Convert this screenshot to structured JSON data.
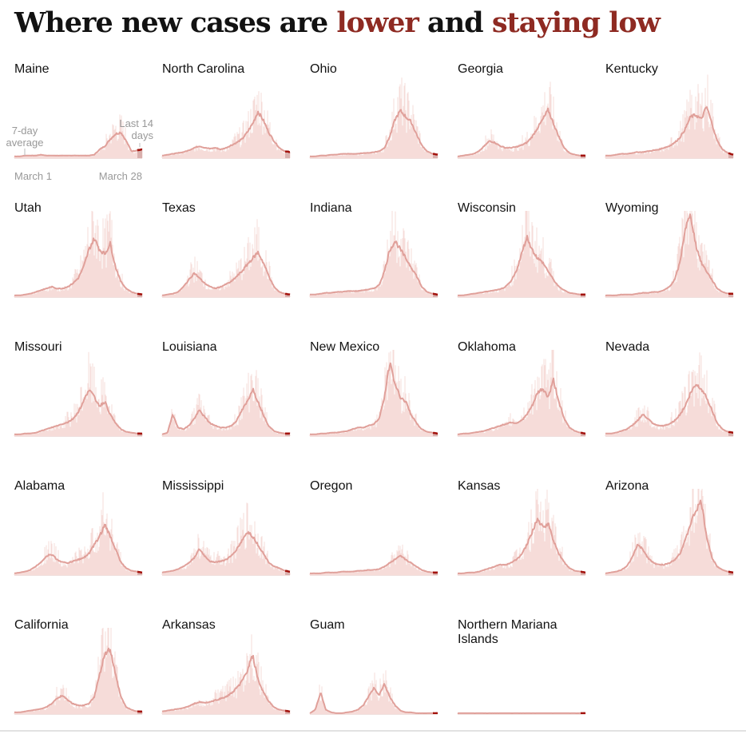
{
  "title": {
    "part1": "Where new cases are ",
    "part2": "lower",
    "part3": " and ",
    "part4": "staying low"
  },
  "colors": {
    "line": "#e0a09a",
    "bars": "#f6dcd9",
    "recent": "#a3120c",
    "recent_band": "#d9b0ad",
    "title_red": "#8e2a22"
  },
  "chart_data": {
    "type": "line",
    "title": "Where new cases are lower and staying low",
    "xlabel": "",
    "ylabel": "",
    "ylim": [
      0,
      100
    ],
    "x_range": [
      "March 1",
      "March 28"
    ],
    "annotations": {
      "avg": "7-day average",
      "recent": "Last 14 days",
      "start": "March 1",
      "end": "March 28"
    },
    "series": [
      {
        "name": "Maine",
        "values": [
          2,
          2,
          3,
          3,
          3,
          4,
          3,
          3,
          3,
          3,
          3,
          3,
          3,
          3,
          3,
          4,
          10,
          14,
          22,
          28,
          30,
          20,
          8,
          9,
          10
        ]
      },
      {
        "name": "North Carolina",
        "values": [
          3,
          4,
          5,
          6,
          7,
          9,
          12,
          14,
          12,
          11,
          12,
          10,
          12,
          15,
          18,
          22,
          30,
          40,
          54,
          44,
          30,
          20,
          12,
          8,
          7
        ]
      },
      {
        "name": "Ohio",
        "values": [
          2,
          2,
          3,
          3,
          4,
          4,
          5,
          5,
          5,
          5,
          6,
          6,
          7,
          8,
          12,
          25,
          45,
          55,
          48,
          42,
          28,
          15,
          8,
          5,
          4
        ]
      },
      {
        "name": "Georgia",
        "values": [
          2,
          3,
          4,
          5,
          8,
          14,
          20,
          18,
          14,
          12,
          12,
          13,
          15,
          18,
          25,
          35,
          45,
          56,
          40,
          25,
          12,
          6,
          4,
          3,
          3
        ]
      },
      {
        "name": "Kentucky",
        "values": [
          3,
          3,
          4,
          5,
          5,
          6,
          7,
          7,
          8,
          9,
          10,
          12,
          14,
          18,
          24,
          34,
          48,
          50,
          45,
          60,
          40,
          20,
          10,
          6,
          4
        ]
      },
      {
        "name": "Utah",
        "values": [
          2,
          2,
          3,
          4,
          6,
          8,
          10,
          12,
          10,
          10,
          12,
          16,
          22,
          35,
          55,
          68,
          55,
          50,
          62,
          35,
          18,
          10,
          6,
          4,
          3
        ]
      },
      {
        "name": "Texas",
        "values": [
          2,
          3,
          4,
          6,
          12,
          20,
          28,
          22,
          16,
          12,
          10,
          12,
          15,
          18,
          24,
          30,
          38,
          45,
          52,
          40,
          25,
          12,
          6,
          4,
          3
        ]
      },
      {
        "name": "Indiana",
        "values": [
          3,
          3,
          4,
          5,
          5,
          6,
          6,
          7,
          7,
          7,
          8,
          9,
          10,
          14,
          30,
          55,
          65,
          55,
          45,
          35,
          25,
          12,
          6,
          4,
          3
        ]
      },
      {
        "name": "Wisconsin",
        "values": [
          2,
          2,
          3,
          4,
          5,
          6,
          7,
          8,
          9,
          12,
          18,
          30,
          50,
          70,
          55,
          45,
          40,
          30,
          20,
          12,
          8,
          5,
          4,
          3,
          3
        ]
      },
      {
        "name": "Wyoming",
        "values": [
          2,
          2,
          2,
          3,
          3,
          3,
          4,
          5,
          5,
          6,
          6,
          8,
          12,
          20,
          40,
          80,
          95,
          60,
          40,
          30,
          20,
          10,
          6,
          4,
          4
        ]
      },
      {
        "name": "Missouri",
        "values": [
          2,
          2,
          3,
          3,
          4,
          6,
          8,
          10,
          12,
          14,
          16,
          20,
          28,
          40,
          55,
          45,
          35,
          40,
          25,
          15,
          8,
          5,
          4,
          3,
          3
        ]
      },
      {
        "name": "Louisiana",
        "values": [
          2,
          4,
          25,
          10,
          8,
          12,
          20,
          30,
          22,
          15,
          12,
          10,
          10,
          12,
          18,
          30,
          40,
          55,
          40,
          25,
          12,
          6,
          4,
          3,
          3
        ]
      },
      {
        "name": "New Mexico",
        "values": [
          2,
          2,
          3,
          3,
          4,
          4,
          5,
          6,
          8,
          10,
          10,
          12,
          14,
          20,
          45,
          85,
          60,
          45,
          40,
          25,
          15,
          8,
          5,
          4,
          3
        ]
      },
      {
        "name": "Oklahoma",
        "values": [
          2,
          3,
          3,
          4,
          5,
          6,
          8,
          10,
          12,
          14,
          16,
          15,
          18,
          25,
          35,
          50,
          55,
          45,
          65,
          40,
          20,
          10,
          6,
          4,
          3
        ]
      },
      {
        "name": "Nevada",
        "values": [
          3,
          3,
          4,
          6,
          8,
          12,
          18,
          25,
          20,
          14,
          12,
          12,
          14,
          18,
          25,
          35,
          50,
          60,
          55,
          45,
          30,
          15,
          8,
          5,
          4
        ]
      },
      {
        "name": "Alabama",
        "values": [
          2,
          3,
          4,
          6,
          10,
          15,
          22,
          24,
          18,
          15,
          14,
          16,
          18,
          20,
          25,
          35,
          45,
          58,
          45,
          30,
          15,
          8,
          5,
          4,
          3
        ]
      },
      {
        "name": "Mississippi",
        "values": [
          3,
          4,
          5,
          7,
          10,
          14,
          20,
          30,
          22,
          16,
          15,
          16,
          18,
          22,
          30,
          40,
          50,
          45,
          35,
          25,
          15,
          10,
          8,
          5,
          4
        ]
      },
      {
        "name": "Oregon",
        "values": [
          2,
          2,
          2,
          3,
          3,
          3,
          4,
          4,
          4,
          5,
          5,
          6,
          6,
          7,
          10,
          14,
          18,
          22,
          18,
          14,
          10,
          6,
          4,
          3,
          3
        ]
      },
      {
        "name": "Kansas",
        "values": [
          2,
          2,
          3,
          3,
          4,
          6,
          8,
          10,
          12,
          12,
          14,
          18,
          24,
          35,
          50,
          65,
          55,
          60,
          40,
          25,
          15,
          8,
          5,
          4,
          3
        ]
      },
      {
        "name": "Arizona",
        "values": [
          2,
          3,
          4,
          6,
          10,
          20,
          35,
          30,
          20,
          14,
          12,
          12,
          14,
          18,
          25,
          40,
          60,
          75,
          85,
          45,
          20,
          10,
          6,
          4,
          3
        ]
      },
      {
        "name": "California",
        "values": [
          2,
          2,
          3,
          4,
          5,
          6,
          8,
          12,
          18,
          22,
          16,
          12,
          10,
          10,
          12,
          20,
          45,
          70,
          75,
          45,
          20,
          8,
          5,
          3,
          3
        ]
      },
      {
        "name": "Arkansas",
        "values": [
          3,
          4,
          5,
          6,
          7,
          9,
          12,
          14,
          13,
          14,
          16,
          18,
          20,
          24,
          30,
          38,
          50,
          68,
          40,
          25,
          15,
          8,
          5,
          4,
          3
        ]
      },
      {
        "name": "Guam",
        "values": [
          1,
          5,
          25,
          5,
          2,
          1,
          1,
          2,
          3,
          5,
          10,
          20,
          30,
          22,
          35,
          20,
          10,
          4,
          2,
          2,
          1,
          1,
          1,
          1,
          1
        ]
      },
      {
        "name": "Northern Mariana Islands",
        "values": [
          1,
          1,
          1,
          1,
          1,
          1,
          1,
          1,
          1,
          1,
          1,
          1,
          1,
          1,
          1,
          1,
          1,
          1,
          1,
          1,
          1,
          1,
          1,
          1,
          1
        ]
      }
    ]
  }
}
